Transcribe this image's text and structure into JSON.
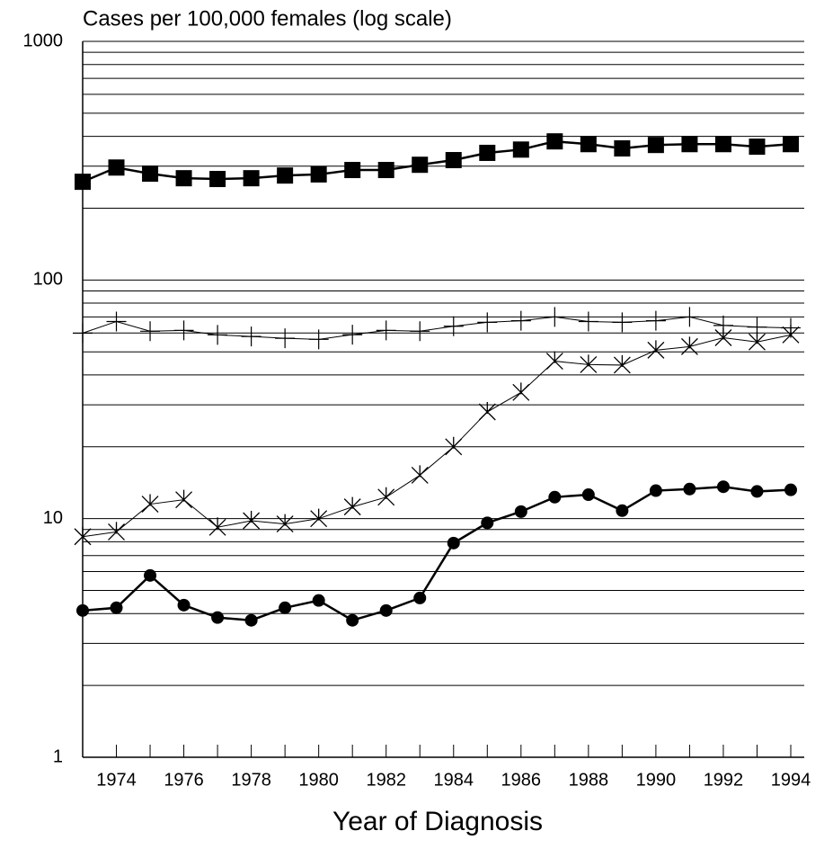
{
  "chart_data": {
    "type": "line",
    "title": "Cases per 100,000 females (log scale)",
    "x_label": "Year of Diagnosis",
    "x": [
      1973,
      1974,
      1975,
      1976,
      1977,
      1978,
      1979,
      1980,
      1981,
      1982,
      1983,
      1984,
      1985,
      1986,
      1987,
      1988,
      1989,
      1990,
      1991,
      1992,
      1993,
      1994
    ],
    "xlim": [
      1973,
      1994.4
    ],
    "xticks": [
      1974,
      1976,
      1978,
      1980,
      1982,
      1984,
      1986,
      1988,
      1990,
      1992,
      1994
    ],
    "ylim": [
      1,
      1000
    ],
    "yticks": [
      1,
      10,
      100,
      1000
    ],
    "y_minor_grid": [
      2,
      3,
      4,
      5,
      6,
      7,
      8,
      9,
      20,
      30,
      40,
      50,
      60,
      70,
      80,
      90,
      200,
      300,
      400,
      500,
      600,
      700,
      800,
      900
    ],
    "log_scale": true,
    "grid": true,
    "series": [
      {
        "color": "#000000",
        "marker": "square",
        "line_width": 2.5,
        "values": [
          258,
          296,
          279,
          267,
          265,
          267,
          274,
          277,
          289,
          289,
          304,
          318,
          341,
          352,
          381,
          371,
          356,
          368,
          371,
          371,
          362,
          371
        ]
      },
      {
        "color": "#000000",
        "marker": "plus",
        "line_width": 1,
        "values": [
          59.9,
          67,
          61,
          61.5,
          58.9,
          58,
          57,
          56.4,
          59,
          61.5,
          61,
          64,
          66.5,
          67.5,
          70,
          67,
          66.5,
          67.5,
          70,
          64.5,
          63.5,
          63
        ]
      },
      {
        "color": "#000000",
        "marker": "asterisk",
        "line_width": 1,
        "values": [
          8.4,
          8.8,
          11.5,
          12.0,
          9.2,
          9.8,
          9.5,
          10,
          11.2,
          12.3,
          15.2,
          20,
          28,
          33.8,
          45.7,
          44.2,
          44,
          50.8,
          52.6,
          57.3,
          55,
          58.9
        ]
      },
      {
        "color": "#000000",
        "marker": "circle",
        "line_width": 2.5,
        "values": [
          4.12,
          4.23,
          5.78,
          4.34,
          3.85,
          3.75,
          4.23,
          4.54,
          3.75,
          4.12,
          4.65,
          7.9,
          9.6,
          10.7,
          12.3,
          12.6,
          10.8,
          13.1,
          13.3,
          13.6,
          13.0,
          13.2
        ]
      }
    ]
  }
}
